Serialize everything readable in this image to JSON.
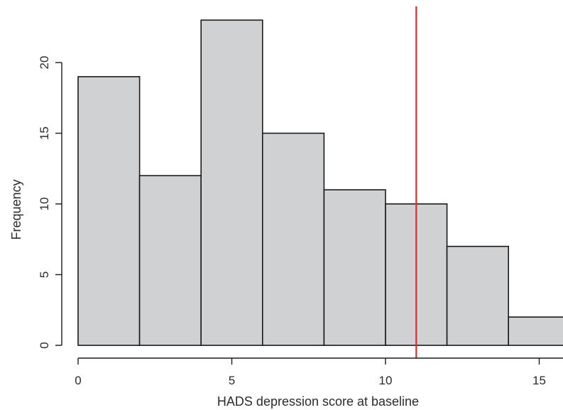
{
  "chart_data": {
    "type": "bar",
    "title": "",
    "xlabel": "HADS depression score at baseline",
    "ylabel": "Frequency",
    "bins": [
      {
        "start": 0,
        "end": 2,
        "value": 19
      },
      {
        "start": 2,
        "end": 4,
        "value": 12
      },
      {
        "start": 4,
        "end": 6,
        "value": 23
      },
      {
        "start": 6,
        "end": 8,
        "value": 15
      },
      {
        "start": 8,
        "end": 10,
        "value": 11
      },
      {
        "start": 10,
        "end": 12,
        "value": 10
      },
      {
        "start": 12,
        "end": 14,
        "value": 7
      },
      {
        "start": 14,
        "end": 16,
        "value": 2
      }
    ],
    "xlim": [
      0,
      16
    ],
    "ylim": [
      0,
      23
    ],
    "xticks": [
      "0",
      "5",
      "10",
      "15"
    ],
    "yticks": [
      "0",
      "5",
      "10",
      "15",
      "20"
    ],
    "reference_line": {
      "x": 11,
      "color": "#e32b2b"
    },
    "bar_color": "#d0d1d3",
    "grid": false
  }
}
